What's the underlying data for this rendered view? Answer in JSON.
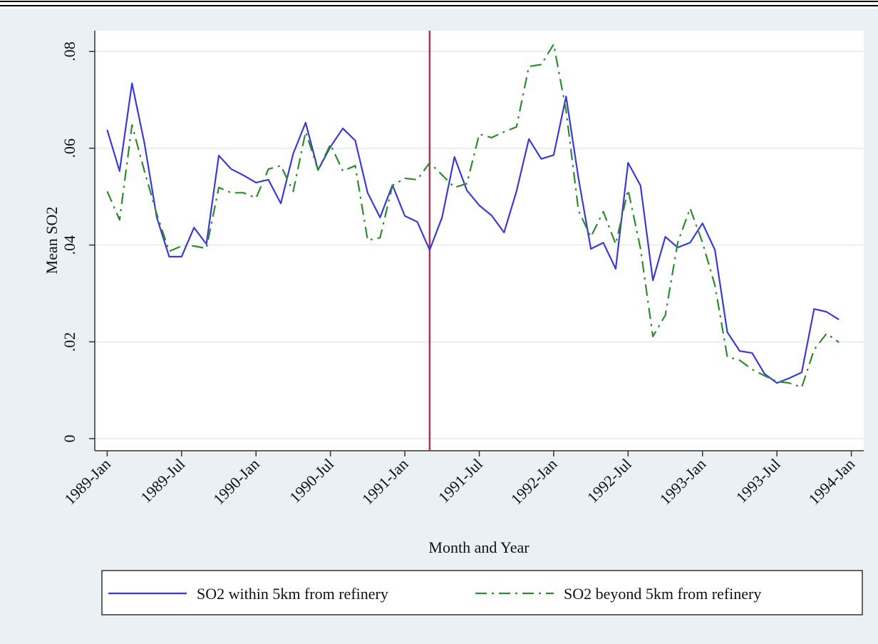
{
  "chart_data": {
    "type": "line",
    "y_label": "Mean SO2",
    "x_label": "Month and Year",
    "x": [
      "1989-01",
      "1989-02",
      "1989-03",
      "1989-04",
      "1989-05",
      "1989-06",
      "1989-07",
      "1989-08",
      "1989-09",
      "1989-10",
      "1989-11",
      "1989-12",
      "1990-01",
      "1990-02",
      "1990-03",
      "1990-04",
      "1990-05",
      "1990-06",
      "1990-07",
      "1990-08",
      "1990-09",
      "1990-10",
      "1990-11",
      "1990-12",
      "1991-01",
      "1991-02",
      "1991-03",
      "1991-04",
      "1991-05",
      "1991-06",
      "1991-07",
      "1991-08",
      "1991-09",
      "1991-10",
      "1991-11",
      "1991-12",
      "1992-01",
      "1992-02",
      "1992-03",
      "1992-04",
      "1992-05",
      "1992-06",
      "1992-07",
      "1992-08",
      "1992-09",
      "1992-10",
      "1992-11",
      "1992-12",
      "1993-01",
      "1993-02",
      "1993-03",
      "1993-04",
      "1993-05",
      "1993-06",
      "1993-07",
      "1993-08",
      "1993-09",
      "1993-10",
      "1993-11",
      "1993-12"
    ],
    "series": [
      {
        "name": "SO2 within 5km from refinery",
        "color": "#3a3ad6",
        "dash": "solid",
        "values": [
          0.0638,
          0.0553,
          0.0734,
          0.0611,
          0.0457,
          0.0376,
          0.0376,
          0.0436,
          0.0402,
          0.0585,
          0.0557,
          0.0544,
          0.0529,
          0.0535,
          0.0486,
          0.0589,
          0.0653,
          0.0555,
          0.0603,
          0.0641,
          0.0616,
          0.0508,
          0.0457,
          0.0524,
          0.046,
          0.0448,
          0.039,
          0.0457,
          0.0582,
          0.0513,
          0.0482,
          0.0461,
          0.0426,
          0.0511,
          0.0619,
          0.0578,
          0.0586,
          0.0707,
          0.0538,
          0.0392,
          0.0405,
          0.0351,
          0.057,
          0.0523,
          0.0327,
          0.0417,
          0.0395,
          0.0405,
          0.0445,
          0.039,
          0.022,
          0.0181,
          0.0177,
          0.0134,
          0.0115,
          0.0125,
          0.0137,
          0.0268,
          0.0262,
          0.0246
        ]
      },
      {
        "name": "SO2 beyond 5km from refinery",
        "color": "#2e8b2e",
        "dash": "dashdot",
        "values": [
          0.0511,
          0.0452,
          0.0648,
          0.0553,
          0.0464,
          0.0387,
          0.0398,
          0.0398,
          0.0393,
          0.0519,
          0.0508,
          0.0508,
          0.0497,
          0.0557,
          0.0564,
          0.0511,
          0.0634,
          0.0555,
          0.0608,
          0.0553,
          0.0564,
          0.041,
          0.0415,
          0.0523,
          0.0538,
          0.0535,
          0.057,
          0.0545,
          0.0519,
          0.0527,
          0.0629,
          0.0622,
          0.0634,
          0.0644,
          0.0769,
          0.0773,
          0.0815,
          0.0678,
          0.0471,
          0.0417,
          0.0469,
          0.0402,
          0.0514,
          0.0393,
          0.0211,
          0.0255,
          0.0405,
          0.0476,
          0.0405,
          0.0317,
          0.0169,
          0.0162,
          0.0143,
          0.013,
          0.0118,
          0.0115,
          0.0106,
          0.0184,
          0.0217,
          0.0199
        ]
      }
    ],
    "vline": {
      "x": "1991-03",
      "color": "#b03050"
    },
    "xlim": [
      "1988-12",
      "1994-02"
    ],
    "xticks": [
      {
        "value": "1989-01",
        "label": "1989-Jan"
      },
      {
        "value": "1989-07",
        "label": "1989-Jul"
      },
      {
        "value": "1990-01",
        "label": "1990-Jan"
      },
      {
        "value": "1990-07",
        "label": "1990-Jul"
      },
      {
        "value": "1991-01",
        "label": "1991-Jan"
      },
      {
        "value": "1991-07",
        "label": "1991-Jul"
      },
      {
        "value": "1992-01",
        "label": "1992-Jan"
      },
      {
        "value": "1992-07",
        "label": "1992-Jul"
      },
      {
        "value": "1993-01",
        "label": "1993-Jan"
      },
      {
        "value": "1993-07",
        "label": "1993-Jul"
      },
      {
        "value": "1994-01",
        "label": "1994-Jan"
      }
    ],
    "ylim": [
      -0.0025,
      0.0843
    ],
    "yticks": [
      0,
      {
        "value": 0.02,
        "label": ".02"
      },
      {
        "value": 0.04,
        "label": ".04"
      },
      {
        "value": 0.06,
        "label": ".06"
      },
      {
        "value": 0.08,
        "label": ".08"
      }
    ],
    "grid": true
  }
}
